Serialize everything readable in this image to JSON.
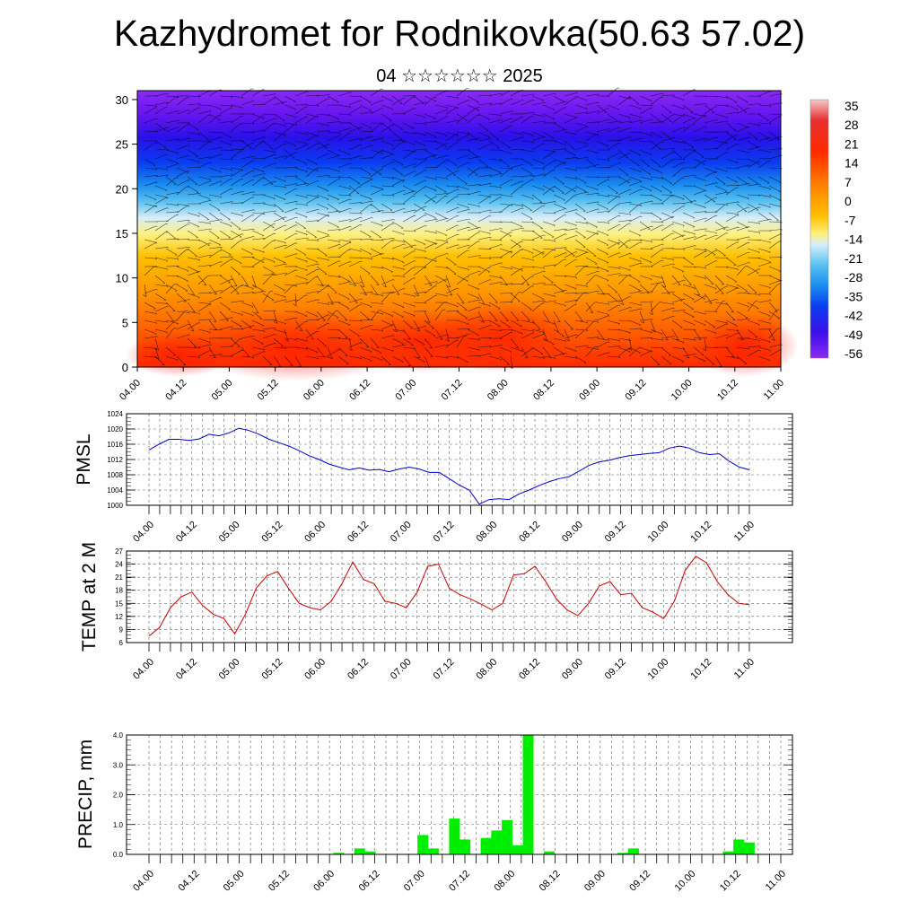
{
  "header": {
    "title": "Kazhydromet for Rodnikovka(50.63 57.02)",
    "subtitle": "04 ☆☆☆☆☆☆ 2025"
  },
  "colors": {
    "pmsl_line": "#0000cc",
    "temp_line": "#cc0000",
    "precip_bar": "#00ee00"
  },
  "chart_data": [
    {
      "type": "heatmap",
      "title": "",
      "xlabel": "",
      "ylabel": "",
      "x_tick_labels": [
        "04.00",
        "04.12",
        "05.00",
        "05.12",
        "06.00",
        "06.12",
        "07.00",
        "07.12",
        "08.00",
        "08.12",
        "09.00",
        "09.12",
        "10.00",
        "10.12",
        "11.00"
      ],
      "y_ticks": [
        0,
        5,
        10,
        15,
        20,
        25,
        30
      ],
      "ylim": [
        0,
        31
      ],
      "colorbar": {
        "labels": [
          "35",
          "28",
          "21",
          "14",
          "7",
          "0",
          "-7",
          "-14",
          "-21",
          "-28",
          "-35",
          "-42",
          "-49",
          "-56"
        ],
        "values": [
          35,
          28,
          21,
          14,
          7,
          0,
          -7,
          -14,
          -21,
          -28,
          -35,
          -42,
          -49,
          -56
        ]
      },
      "overlay": "wind barbs"
    },
    {
      "type": "line",
      "ylabel": "PMSL",
      "x_tick_labels": [
        "04.00",
        "04.12",
        "05.00",
        "05.12",
        "06.00",
        "06.12",
        "07.00",
        "07.12",
        "08.00",
        "08.12",
        "09.00",
        "09.12",
        "10.00",
        "10.12",
        "11.00"
      ],
      "y_ticks": [
        1000,
        1004,
        1008,
        1012,
        1016,
        1020,
        1024
      ],
      "ylim": [
        1000,
        1024
      ],
      "grid": true,
      "series": [
        {
          "values": [
            1014.5,
            1016,
            1017.3,
            1017.3,
            1017,
            1017.4,
            1018.6,
            1018.2,
            1019,
            1020.2,
            1019.6,
            1018.6,
            1017.3,
            1016.4,
            1015.5,
            1014.3,
            1013,
            1012,
            1010.8,
            1010,
            1009.3,
            1009.8,
            1009.2,
            1009.4,
            1008.8,
            1009.5,
            1010,
            1009.5,
            1008.6,
            1008.6,
            1007,
            1005.3,
            1004,
            1000.3,
            1001.5,
            1001.7,
            1001.5,
            1003,
            1004,
            1005.2,
            1006.2,
            1007,
            1007.5,
            1009,
            1010.5,
            1011.4,
            1011.8,
            1012.5,
            1013,
            1013.3,
            1013.6,
            1013.8,
            1015,
            1015.5,
            1015,
            1013.8,
            1013.3,
            1013.5,
            1011.5,
            1010,
            1009.3
          ]
        }
      ]
    },
    {
      "type": "line",
      "ylabel": "TEMP at 2 M",
      "x_tick_labels": [
        "04.00",
        "04.12",
        "05.00",
        "05.12",
        "06.00",
        "06.12",
        "07.00",
        "07.12",
        "08.00",
        "08.12",
        "09.00",
        "09.12",
        "10.00",
        "10.12",
        "11.00"
      ],
      "y_ticks": [
        6,
        9,
        12,
        15,
        18,
        21,
        24,
        27
      ],
      "ylim": [
        6,
        27
      ],
      "grid": true,
      "series": [
        {
          "values": [
            7.5,
            9.5,
            14,
            16.5,
            17.6,
            14.5,
            12.5,
            11.5,
            8,
            12.5,
            18.5,
            21.3,
            22.3,
            18.5,
            15,
            14,
            13.5,
            15.5,
            19.5,
            24.5,
            20.5,
            19.5,
            15.5,
            15,
            14,
            17.5,
            23.5,
            24,
            18.5,
            17,
            16,
            14.8,
            13.5,
            15,
            21.5,
            21.8,
            23.5,
            20,
            16,
            13.5,
            12.2,
            15,
            19,
            20,
            17,
            17.3,
            14,
            13,
            11.5,
            15.5,
            22.5,
            25.8,
            24.3,
            20,
            17,
            15,
            14.7
          ]
        }
      ]
    },
    {
      "type": "bar",
      "ylabel": "PRECIP, mm",
      "x_tick_labels": [
        "04.00",
        "04.12",
        "05.00",
        "05.12",
        "06.00",
        "06.12",
        "07.00",
        "07.12",
        "08.00",
        "08.12",
        "09.00",
        "09.12",
        "10.00",
        "10.12",
        "11.00"
      ],
      "y_tick_labels": [
        "0.0",
        "1.0",
        "2.0",
        "3.0",
        "4.0"
      ],
      "ylim": [
        0,
        4
      ],
      "grid": true,
      "values": [
        0,
        0,
        0,
        0,
        0,
        0,
        0,
        0,
        0,
        0,
        0,
        0,
        0,
        0,
        0,
        0,
        0,
        0,
        0.05,
        0,
        0.2,
        0.1,
        0,
        0,
        0,
        0,
        0.65,
        0.2,
        0,
        1.2,
        0.5,
        0,
        0.55,
        0.8,
        1.15,
        0.3,
        4.0,
        0,
        0.1,
        0,
        0,
        0,
        0,
        0,
        0,
        0.05,
        0.2,
        0,
        0,
        0,
        0,
        0,
        0,
        0,
        0,
        0.1,
        0.5,
        0.4,
        0,
        0,
        0
      ]
    }
  ]
}
